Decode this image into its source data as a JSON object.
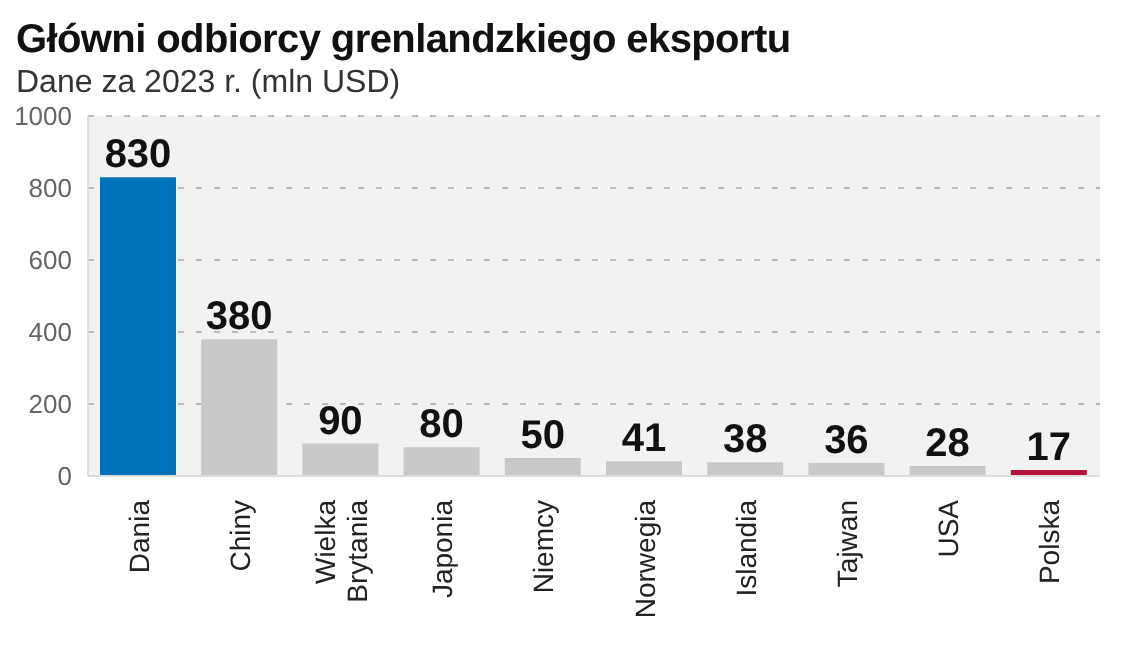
{
  "chart_data": {
    "type": "bar",
    "title": "Główni odbiorcy grenlandzkiego eksportu",
    "subtitle": "Dane za 2023 r. (mln USD)",
    "categories": [
      "Dania",
      "Chiny",
      "Wielka Brytania",
      "Japonia",
      "Niemcy",
      "Norwegia",
      "Islandia",
      "Tajwan",
      "USA",
      "Polska"
    ],
    "values": [
      830,
      380,
      90,
      80,
      50,
      41,
      38,
      36,
      28,
      17
    ],
    "colors": [
      "#0072bb",
      "#c8c8c8",
      "#c8c8c8",
      "#c8c8c8",
      "#c8c8c8",
      "#c8c8c8",
      "#c8c8c8",
      "#c8c8c8",
      "#c8c8c8",
      "#b5123f"
    ],
    "ylim": [
      0,
      1000
    ],
    "yticks": [
      0,
      200,
      400,
      600,
      800,
      1000
    ],
    "grid": "y",
    "data_labels": true
  }
}
